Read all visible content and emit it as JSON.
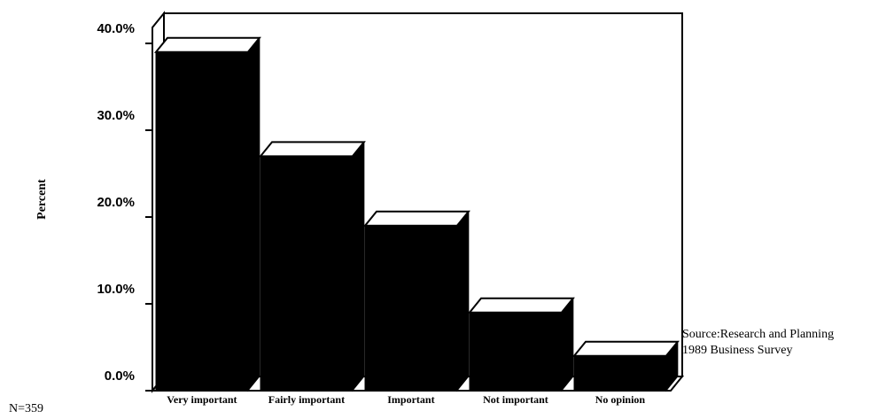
{
  "chart_data": {
    "type": "bar3d",
    "y_label": "Percent",
    "categories": [
      "Very important",
      "Fairly important",
      "Important",
      "Not important",
      "No opinion"
    ],
    "values": [
      39,
      27,
      19,
      9,
      4
    ],
    "color": "#000000",
    "ylim": [
      0,
      40
    ],
    "yticks": [
      {
        "value": 0,
        "label": "0.0%"
      },
      {
        "value": 10,
        "label": "10.0%"
      },
      {
        "value": 20,
        "label": "20.0%"
      },
      {
        "value": 30,
        "label": "30.0%"
      },
      {
        "value": 40,
        "label": "40.0%"
      }
    ],
    "annotations": [
      "Source:Research and Planning",
      "1989 Business Survey"
    ],
    "sample_note": "N=359"
  }
}
